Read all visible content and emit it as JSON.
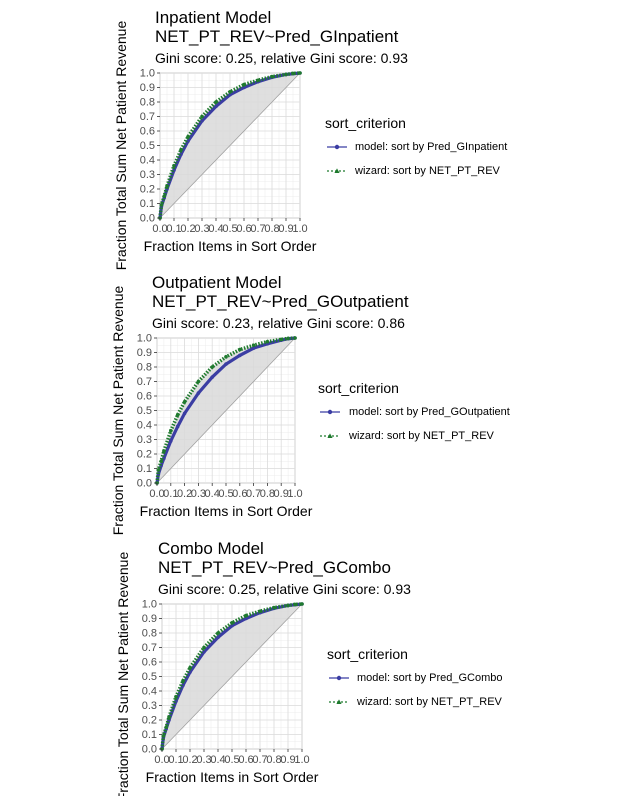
{
  "chart_data": [
    {
      "type": "line",
      "title": "Inpatient Model",
      "formula": "NET_PT_REV~Pred_GInpatient",
      "subtitle": "Gini score: 0.25, relative Gini score: 0.93",
      "xlabel": "Fraction Items in Sort Order",
      "ylabel": "Fraction Total Sum Net Patient Revenue",
      "xlim": [
        0,
        1
      ],
      "ylim": [
        0,
        1
      ],
      "x_ticks": [
        "0.0",
        "0.1",
        "0.2",
        "0.3",
        "0.4",
        "0.5",
        "0.6",
        "0.7",
        "0.8",
        "0.9",
        "1.0"
      ],
      "y_ticks": [
        "0.0",
        "0.1",
        "0.2",
        "0.3",
        "0.4",
        "0.5",
        "0.6",
        "0.7",
        "0.8",
        "0.9",
        "1.0"
      ],
      "grid": true,
      "legend": {
        "title": "sort_criterion",
        "placement": "right",
        "entries": [
          "model: sort by Pred_GInpatient",
          "wizard: sort by NET_PT_REV"
        ]
      },
      "x": [
        0,
        0.01,
        0.03,
        0.05,
        0.1,
        0.15,
        0.2,
        0.3,
        0.4,
        0.5,
        0.6,
        0.7,
        0.8,
        0.9,
        0.95,
        1.0
      ],
      "series": [
        {
          "name": "model: sort by Pred_GInpatient",
          "color": "#3b3da3",
          "style": "solid",
          "values": [
            0,
            0.08,
            0.14,
            0.2,
            0.33,
            0.44,
            0.53,
            0.67,
            0.77,
            0.85,
            0.9,
            0.94,
            0.97,
            0.99,
            0.995,
            1.0
          ]
        },
        {
          "name": "wizard: sort by NET_PT_REV",
          "color": "#1f7a2e",
          "style": "dotted",
          "values": [
            0,
            0.09,
            0.15,
            0.22,
            0.36,
            0.47,
            0.56,
            0.7,
            0.8,
            0.87,
            0.92,
            0.95,
            0.975,
            0.99,
            0.997,
            1.0
          ]
        }
      ]
    },
    {
      "type": "line",
      "title": "Outpatient Model",
      "formula": "NET_PT_REV~Pred_GOutpatient",
      "subtitle": "Gini score: 0.23, relative Gini score: 0.86",
      "xlabel": "Fraction Items in Sort Order",
      "ylabel": "Fraction Total Sum Net Patient Revenue",
      "xlim": [
        0,
        1
      ],
      "ylim": [
        0,
        1
      ],
      "x_ticks": [
        "0.0",
        "0.1",
        "0.2",
        "0.3",
        "0.4",
        "0.5",
        "0.6",
        "0.7",
        "0.8",
        "0.9",
        "1.0"
      ],
      "y_ticks": [
        "0.0",
        "0.1",
        "0.2",
        "0.3",
        "0.4",
        "0.5",
        "0.6",
        "0.7",
        "0.8",
        "0.9",
        "1.0"
      ],
      "grid": true,
      "legend": {
        "title": "sort_criterion",
        "placement": "right",
        "entries": [
          "model: sort by Pred_GOutpatient",
          "wizard: sort by NET_PT_REV"
        ]
      },
      "x": [
        0,
        0.01,
        0.03,
        0.05,
        0.1,
        0.15,
        0.2,
        0.3,
        0.4,
        0.5,
        0.6,
        0.7,
        0.8,
        0.9,
        0.95,
        1.0
      ],
      "series": [
        {
          "name": "model: sort by Pred_GOutpatient",
          "color": "#3b3da3",
          "style": "solid",
          "values": [
            0,
            0.06,
            0.12,
            0.17,
            0.29,
            0.39,
            0.48,
            0.62,
            0.73,
            0.82,
            0.88,
            0.93,
            0.96,
            0.985,
            0.995,
            1.0
          ]
        },
        {
          "name": "wizard: sort by NET_PT_REV",
          "color": "#1f7a2e",
          "style": "dotted",
          "values": [
            0,
            0.09,
            0.15,
            0.22,
            0.36,
            0.47,
            0.56,
            0.7,
            0.8,
            0.87,
            0.92,
            0.95,
            0.975,
            0.99,
            0.997,
            1.0
          ]
        }
      ]
    },
    {
      "type": "line",
      "title": "Combo Model",
      "formula": "NET_PT_REV~Pred_GCombo",
      "subtitle": "Gini score: 0.25, relative Gini score: 0.93",
      "xlabel": "Fraction Items in Sort Order",
      "ylabel": "Fraction Total Sum Net Patient Revenue",
      "xlim": [
        0,
        1
      ],
      "ylim": [
        0,
        1
      ],
      "x_ticks": [
        "0.0",
        "0.1",
        "0.2",
        "0.3",
        "0.4",
        "0.5",
        "0.6",
        "0.7",
        "0.8",
        "0.9",
        "1.0"
      ],
      "y_ticks": [
        "0.0",
        "0.1",
        "0.2",
        "0.3",
        "0.4",
        "0.5",
        "0.6",
        "0.7",
        "0.8",
        "0.9",
        "1.0"
      ],
      "grid": true,
      "legend": {
        "title": "sort_criterion",
        "placement": "right",
        "entries": [
          "model: sort by Pred_GCombo",
          "wizard: sort by NET_PT_REV"
        ]
      },
      "x": [
        0,
        0.01,
        0.03,
        0.05,
        0.1,
        0.15,
        0.2,
        0.3,
        0.4,
        0.5,
        0.6,
        0.7,
        0.8,
        0.9,
        0.95,
        1.0
      ],
      "series": [
        {
          "name": "model: sort by Pred_GCombo",
          "color": "#3b3da3",
          "style": "solid",
          "values": [
            0,
            0.08,
            0.14,
            0.2,
            0.33,
            0.44,
            0.53,
            0.67,
            0.77,
            0.85,
            0.9,
            0.94,
            0.97,
            0.99,
            0.995,
            1.0
          ]
        },
        {
          "name": "wizard: sort by NET_PT_REV",
          "color": "#1f7a2e",
          "style": "dotted",
          "values": [
            0,
            0.09,
            0.15,
            0.22,
            0.36,
            0.47,
            0.56,
            0.7,
            0.8,
            0.87,
            0.92,
            0.95,
            0.975,
            0.99,
            0.997,
            1.0
          ]
        }
      ]
    }
  ]
}
